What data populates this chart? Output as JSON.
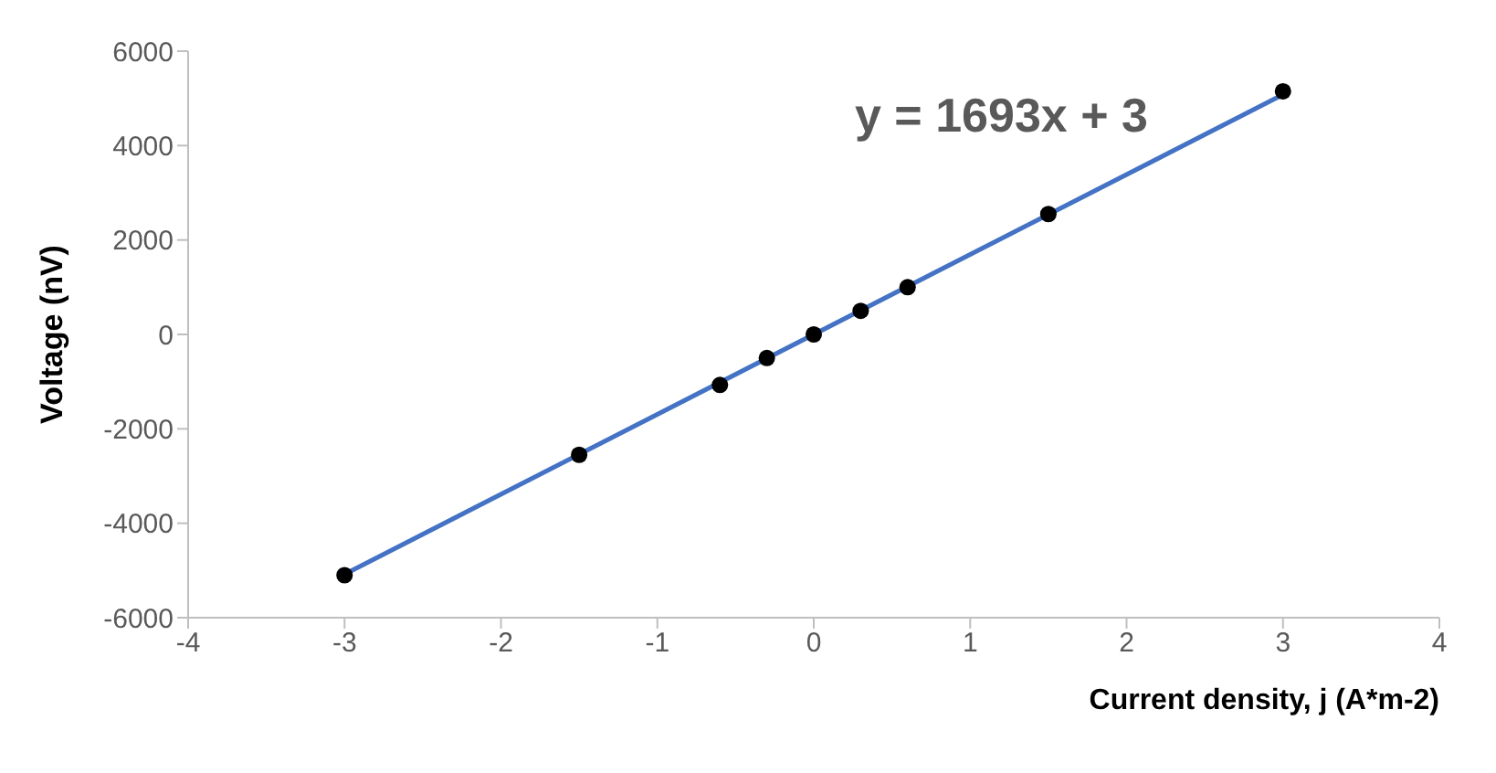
{
  "chart_data": {
    "type": "scatter",
    "xlabel": "Current density, j (A*m-2)",
    "ylabel": "Voltage (nV)",
    "annotations": [
      "y = 1693x + 3"
    ],
    "xlim": [
      -4,
      4
    ],
    "xticks": [
      -4,
      -3,
      -2,
      -1,
      0,
      1,
      2,
      3,
      4
    ],
    "ylim": [
      -6000,
      6000
    ],
    "yticks": [
      -6000,
      -4000,
      -2000,
      0,
      2000,
      4000,
      6000
    ],
    "grid": false,
    "legend": false,
    "marker": "circle",
    "series": [
      {
        "type": "line",
        "color": "#4472c4",
        "x": [
          -3,
          3
        ],
        "values": [
          -5080,
          5080
        ],
        "marker": "none",
        "line_style": "solid"
      },
      {
        "color": "#000000",
        "x": [
          -3,
          -1.5,
          -0.6,
          -0.3,
          0,
          0.3,
          0.6,
          1.5,
          3
        ],
        "values": [
          -5100,
          -2550,
          -1070,
          -500,
          0,
          500,
          1000,
          2550,
          5150
        ]
      }
    ]
  }
}
